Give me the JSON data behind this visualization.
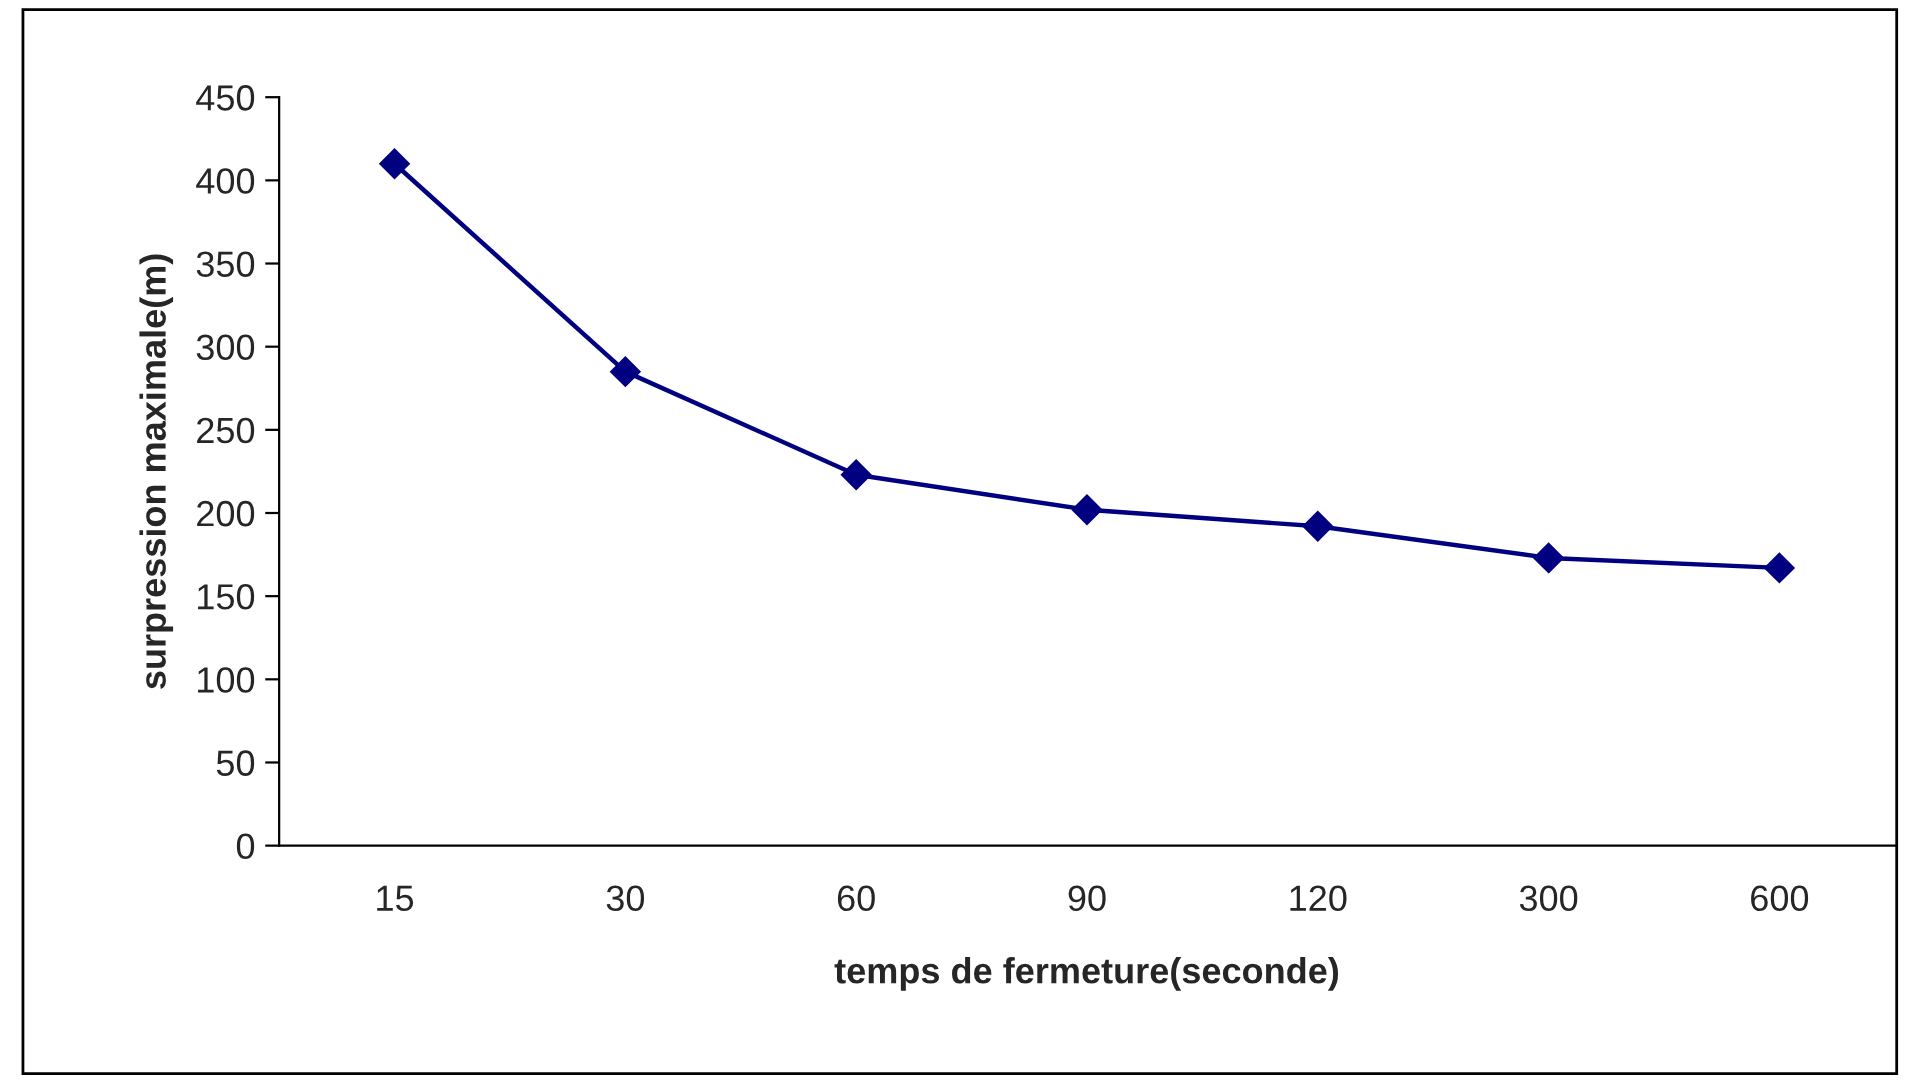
{
  "chart_data": {
    "type": "line",
    "xlabel": "temps de fermeture(seconde)",
    "ylabel": "surpression maximale(m)",
    "categories": [
      "15",
      "30",
      "60",
      "90",
      "120",
      "300",
      "600"
    ],
    "series": [
      {
        "color": "#000080",
        "values": [
          410,
          285,
          223,
          202,
          192,
          173,
          167
        ]
      }
    ],
    "ylim": [
      0,
      450
    ],
    "yticks": [
      0,
      50,
      100,
      150,
      200,
      250,
      300,
      350,
      400,
      450
    ],
    "marker": "diamond",
    "line_style": "solid",
    "grid": false,
    "legend": false
  }
}
